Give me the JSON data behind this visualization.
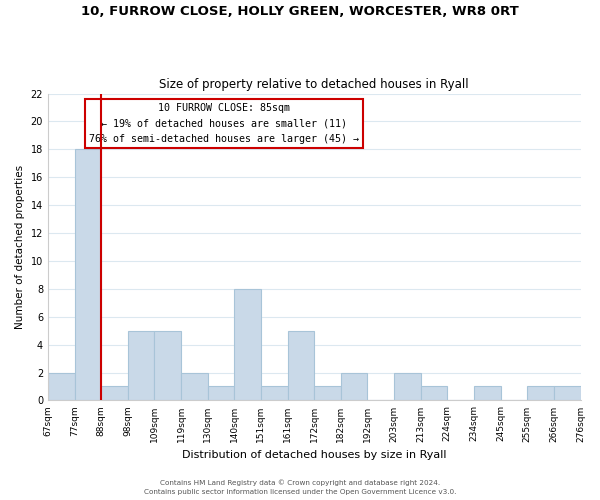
{
  "title1": "10, FURROW CLOSE, HOLLY GREEN, WORCESTER, WR8 0RT",
  "title2": "Size of property relative to detached houses in Ryall",
  "xlabel": "Distribution of detached houses by size in Ryall",
  "ylabel": "Number of detached properties",
  "bins": [
    "67sqm",
    "77sqm",
    "88sqm",
    "98sqm",
    "109sqm",
    "119sqm",
    "130sqm",
    "140sqm",
    "151sqm",
    "161sqm",
    "172sqm",
    "182sqm",
    "192sqm",
    "203sqm",
    "213sqm",
    "224sqm",
    "234sqm",
    "245sqm",
    "255sqm",
    "266sqm",
    "276sqm"
  ],
  "values": [
    2,
    18,
    1,
    5,
    5,
    2,
    1,
    8,
    1,
    5,
    1,
    2,
    0,
    2,
    1,
    0,
    1,
    0,
    1,
    1
  ],
  "bar_color": "#c9d9e8",
  "bar_edge_color": "#a8c4d8",
  "property_line_color": "#cc0000",
  "annotation_box_text": "10 FURROW CLOSE: 85sqm\n← 19% of detached houses are smaller (11)\n76% of semi-detached houses are larger (45) →",
  "annotation_box_color": "#ffffff",
  "annotation_box_edge_color": "#cc0000",
  "ylim": [
    0,
    22
  ],
  "yticks": [
    0,
    2,
    4,
    6,
    8,
    10,
    12,
    14,
    16,
    18,
    20,
    22
  ],
  "footer1": "Contains HM Land Registry data © Crown copyright and database right 2024.",
  "footer2": "Contains public sector information licensed under the Open Government Licence v3.0.",
  "bg_color": "#ffffff",
  "grid_color": "#dce8f0"
}
